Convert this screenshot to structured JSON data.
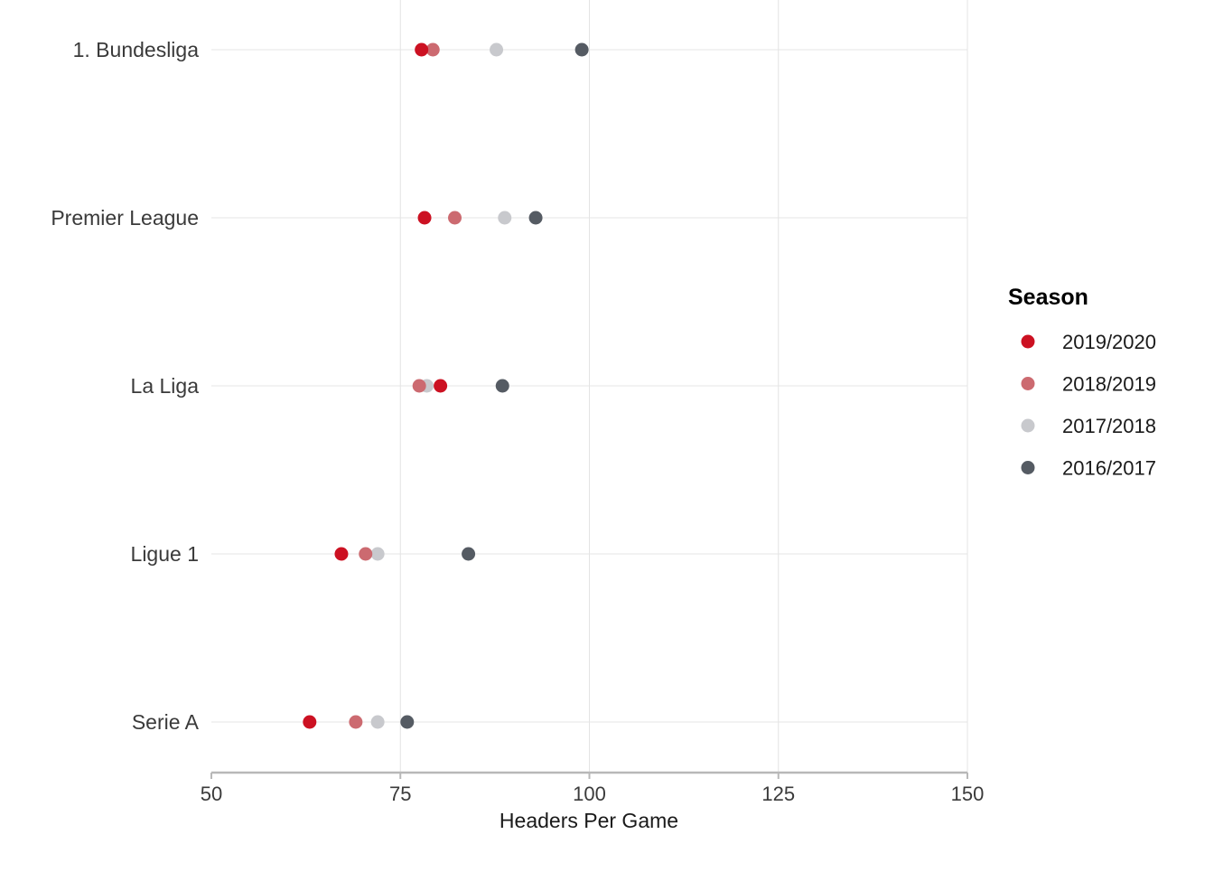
{
  "chart_data": {
    "type": "scatter",
    "title": "",
    "xlabel": "Headers Per Game",
    "ylabel": "",
    "xlim": [
      50,
      150
    ],
    "xticks": [
      50,
      75,
      100,
      125,
      150
    ],
    "categories": [
      "1. Bundesliga",
      "Premier League",
      "La Liga",
      "Ligue 1",
      "Serie A"
    ],
    "grid": true,
    "legend": {
      "title": "Season",
      "position": "right"
    },
    "series": [
      {
        "name": "2016/2017",
        "color": "#555b63",
        "values": [
          99.0,
          92.9,
          88.5,
          84.0,
          75.9
        ]
      },
      {
        "name": "2017/2018",
        "color": "#c8c9cd",
        "values": [
          87.7,
          88.8,
          78.5,
          72.0,
          72.0
        ]
      },
      {
        "name": "2018/2019",
        "color": "#cc6a70",
        "values": [
          79.3,
          82.2,
          77.5,
          70.4,
          69.1
        ]
      },
      {
        "name": "2019/2020",
        "color": "#cc1122",
        "values": [
          77.8,
          78.2,
          80.3,
          67.2,
          63.0
        ]
      }
    ],
    "legend_order": [
      "2019/2020",
      "2018/2019",
      "2017/2018",
      "2016/2017"
    ]
  }
}
